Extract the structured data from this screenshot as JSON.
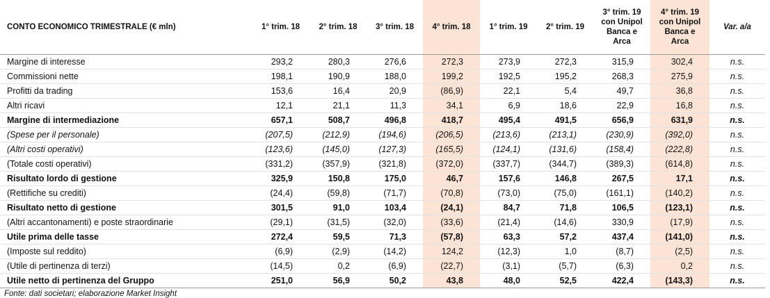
{
  "table": {
    "columns": [
      "CONTO ECONOMICO TRIMESTRALE (€ mln)",
      "1° trim. 18",
      "2° trim. 18",
      "3° trim. 18",
      "4° trim. 18",
      "1° trim. 19",
      "2° trim. 19",
      "3° trim. 19\ncon Unipol\nBanca e\nArca",
      "4° trim. 19\ncon Unipol\nBanca e\nArca",
      "Var. a/a"
    ],
    "rows": [
      [
        "Margine di interesse",
        "293,2",
        "280,3",
        "276,6",
        "272,3",
        "273,9",
        "272,3",
        "315,9",
        "302,4",
        "n.s."
      ],
      [
        "Commissioni nette",
        "198,1",
        "190,9",
        "188,0",
        "199,2",
        "192,5",
        "195,2",
        "268,3",
        "275,9",
        "n.s."
      ],
      [
        "Profitti da trading",
        "153,6",
        "16,4",
        "20,9",
        "(86,9)",
        "22,1",
        "5,4",
        "49,7",
        "36,8",
        "n.s."
      ],
      [
        "Altri ricavi",
        "12,1",
        "21,1",
        "11,3",
        "34,1",
        "6,9",
        "18,6",
        "22,9",
        "16,8",
        "n.s."
      ],
      [
        "Margine di intermediazione",
        "657,1",
        "508,7",
        "496,8",
        "418,7",
        "495,4",
        "491,5",
        "656,9",
        "631,9",
        "n.s."
      ],
      [
        "(Spese per il personale)",
        "(207,5)",
        "(212,9)",
        "(194,6)",
        "(206,5)",
        "(213,6)",
        "(213,1)",
        "(230,9)",
        "(392,0)",
        "n.s."
      ],
      [
        "(Altri costi operativi)",
        "(123,6)",
        "(145,0)",
        "(127,3)",
        "(165,5)",
        "(124,1)",
        "(131,6)",
        "(158,4)",
        "(222,8)",
        "n.s."
      ],
      [
        "(Totale costi operativi)",
        "(331,2)",
        "(357,9)",
        "(321,8)",
        "(372,0)",
        "(337,7)",
        "(344,7)",
        "(389,3)",
        "(614,8)",
        "n.s."
      ],
      [
        "Risultato lordo di gestione",
        "325,9",
        "150,8",
        "175,0",
        "46,7",
        "157,6",
        "146,8",
        "267,5",
        "17,1",
        "n.s."
      ],
      [
        "(Rettifiche su crediti)",
        "(24,4)",
        "(59,8)",
        "(71,7)",
        "(70,8)",
        "(73,0)",
        "(75,0)",
        "(161,1)",
        "(140,2)",
        "n.s."
      ],
      [
        "Risultato netto di gestione",
        "301,5",
        "91,0",
        "103,4",
        "(24,1)",
        "84,7",
        "71,8",
        "106,5",
        "(123,1)",
        "n.s."
      ],
      [
        "(Altri accantonamenti) e poste straordinarie",
        "(29,1)",
        "(31,5)",
        "(32,0)",
        "(33,6)",
        "(21,4)",
        "(14,6)",
        "330,9",
        "(17,9)",
        "n.s."
      ],
      [
        "Utile prima delle tasse",
        "272,4",
        "59,5",
        "71,3",
        "(57,8)",
        "63,3",
        "57,2",
        "437,4",
        "(141,0)",
        "n.s."
      ],
      [
        "(Imposte sul reddito)",
        "(6,9)",
        "(2,9)",
        "(14,2)",
        "124,2",
        "(12,3)",
        "1,0",
        "(8,7)",
        "(2,5)",
        "n.s."
      ],
      [
        "(Utile di pertinenza di terzi)",
        "(14,5)",
        "0,2",
        "(6,9)",
        "(22,7)",
        "(3,1)",
        "(5,7)",
        "(6,3)",
        "0,2",
        "n.s."
      ],
      [
        "Utile netto di pertinenza del Gruppo",
        "251,0",
        "56,9",
        "50,2",
        "43,8",
        "48,0",
        "52,5",
        "422,4",
        "(143,3)",
        "n.s."
      ]
    ]
  },
  "footnote": "Fonte: dati societari; elaborazione Market Insight"
}
